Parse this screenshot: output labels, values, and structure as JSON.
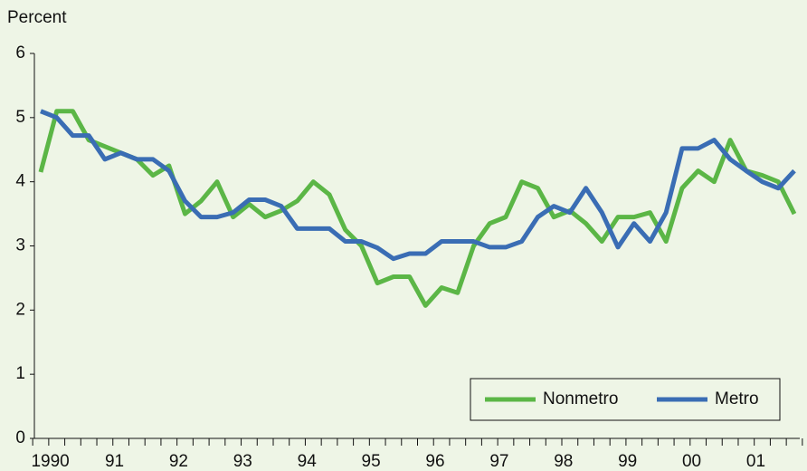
{
  "chart_data": {
    "type": "line",
    "y_label": "Percent",
    "categories": [
      "1990",
      null,
      null,
      null,
      "91",
      null,
      null,
      null,
      "92",
      null,
      null,
      null,
      "93",
      null,
      null,
      null,
      "94",
      null,
      null,
      null,
      "95",
      null,
      null,
      null,
      "96",
      null,
      null,
      null,
      "97",
      null,
      null,
      null,
      "98",
      null,
      null,
      null,
      "99",
      null,
      null,
      null,
      "00",
      null,
      null,
      null,
      "01",
      null,
      null,
      null
    ],
    "series": [
      {
        "name": "Nonmetro",
        "color": "#5bb646",
        "values": [
          4.15,
          5.1,
          5.1,
          4.65,
          4.55,
          4.45,
          4.35,
          4.1,
          4.25,
          3.5,
          3.7,
          4.0,
          3.45,
          3.65,
          3.45,
          3.55,
          3.7,
          4.0,
          3.8,
          3.25,
          3.0,
          2.42,
          2.52,
          2.52,
          2.07,
          2.35,
          2.27,
          3.0,
          3.35,
          3.45,
          4.0,
          3.9,
          3.45,
          3.55,
          3.35,
          3.07,
          3.45,
          3.45,
          3.52,
          3.07,
          3.9,
          4.17,
          4.0,
          4.65,
          4.17,
          4.1,
          4.0,
          3.5
        ]
      },
      {
        "name": "Metro",
        "color": "#3a6db4",
        "values": [
          5.1,
          5.0,
          4.72,
          4.72,
          4.35,
          4.45,
          4.35,
          4.35,
          4.17,
          3.7,
          3.45,
          3.45,
          3.52,
          3.72,
          3.72,
          3.62,
          3.27,
          3.27,
          3.27,
          3.07,
          3.07,
          2.97,
          2.8,
          2.88,
          2.88,
          3.07,
          3.07,
          3.07,
          2.98,
          2.98,
          3.07,
          3.45,
          3.62,
          3.52,
          3.9,
          3.52,
          2.98,
          3.35,
          3.07,
          3.52,
          4.52,
          4.52,
          4.65,
          4.35,
          4.17,
          4.0,
          3.9,
          4.17
        ]
      }
    ],
    "ylim": [
      0,
      6
    ],
    "yticks": [
      0,
      1,
      2,
      3,
      4,
      5,
      6
    ],
    "legend": "lower right"
  }
}
